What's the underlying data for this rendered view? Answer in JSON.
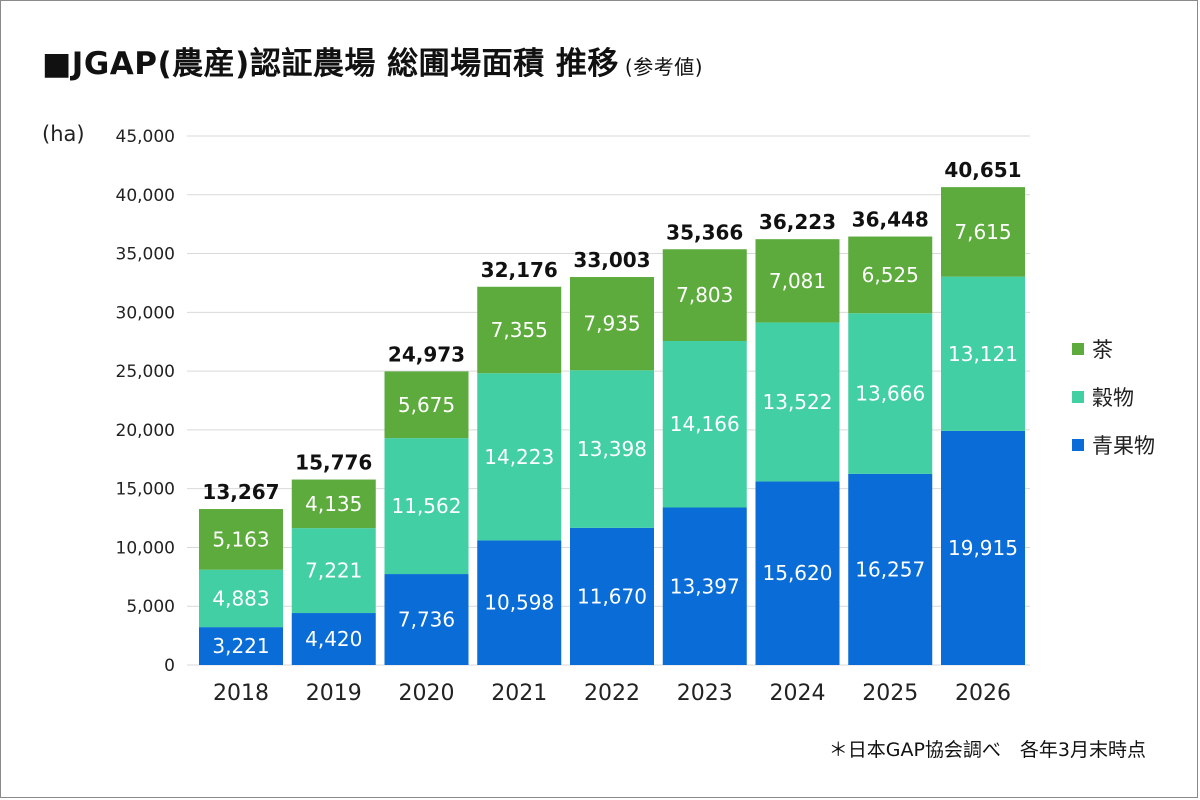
{
  "title": {
    "main": "■JGAP(農産)認証農場 総圃場面積 推移",
    "sub": "(参考値)"
  },
  "unit_label": "(ha)",
  "source_note": "＊日本GAP協会調べ　各年3月末時点",
  "colors": {
    "tea": "#5cab3c",
    "grain": "#42cfa4",
    "vegetables": "#0a6cd6",
    "grid": "#d9d9d9"
  },
  "chart_data": {
    "type": "bar",
    "stacked": true,
    "title": "■JGAP(農産)認証農場 総圃場面積 推移",
    "subtitle": "(参考値)",
    "ylabel": "(ha)",
    "ylim": [
      0,
      45000
    ],
    "yticks": [
      "0",
      "5,000",
      "10,000",
      "15,000",
      "20,000",
      "25,000",
      "30,000",
      "35,000",
      "40,000",
      "45,000"
    ],
    "grid": true,
    "legend_position": "right",
    "categories": [
      "2018",
      "2019",
      "2020",
      "2021",
      "2022",
      "2023",
      "2024",
      "2025",
      "2026"
    ],
    "series": [
      {
        "name": "青果物",
        "color": "#0a6cd6",
        "values": [
          3221,
          4420,
          7736,
          10598,
          11670,
          13397,
          15620,
          16257,
          19915
        ],
        "labels": [
          "3,221",
          "4,420",
          "7,736",
          "10,598",
          "11,670",
          "13,397",
          "15,620",
          "16,257",
          "19,915"
        ]
      },
      {
        "name": "穀物",
        "color": "#42cfa4",
        "values": [
          4883,
          7221,
          11562,
          14223,
          13398,
          14166,
          13522,
          13666,
          13121
        ],
        "labels": [
          "4,883",
          "7,221",
          "11,562",
          "14,223",
          "13,398",
          "14,166",
          "13,522",
          "13,666",
          "13,121"
        ]
      },
      {
        "name": "茶",
        "color": "#5cab3c",
        "values": [
          5163,
          4135,
          5675,
          7355,
          7935,
          7803,
          7081,
          6525,
          7615
        ],
        "labels": [
          "5,163",
          "4,135",
          "5,675",
          "7,355",
          "7,935",
          "7,803",
          "7,081",
          "6,525",
          "7,615"
        ]
      }
    ],
    "totals": [
      13267,
      15776,
      24973,
      32176,
      33003,
      35366,
      36223,
      36448,
      40651
    ],
    "total_labels": [
      "13,267",
      "15,776",
      "24,973",
      "32,176",
      "33,003",
      "35,366",
      "36,223",
      "36,448",
      "40,651"
    ],
    "note": "＊日本GAP協会調べ　各年3月末時点"
  }
}
